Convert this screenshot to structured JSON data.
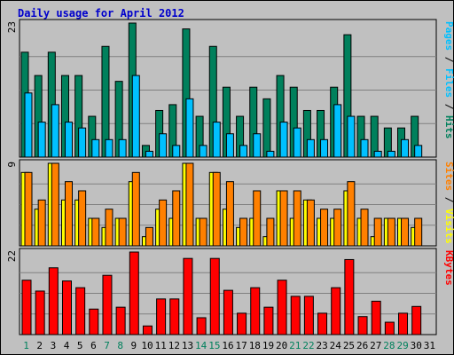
{
  "title": "Daily usage for April 2012",
  "colors": {
    "hits": "#00805c",
    "files": "#00c0ff",
    "pages": "#00c0ff",
    "visits": "#ffff00",
    "sites": "#ff8000",
    "kbytes": "#ff0000",
    "title": "#0000cc",
    "weekday": "#000000",
    "weekend": "#00805c",
    "panel_bg": "#c0c0c0"
  },
  "chart_data": [
    {
      "type": "bar",
      "panel": "top",
      "max_label": "23",
      "ylim": [
        0,
        23
      ],
      "legend": [
        "Pages",
        "Files",
        "Hits"
      ],
      "legend_sep": " / ",
      "categories": [
        "1",
        "2",
        "3",
        "4",
        "5",
        "6",
        "7",
        "8",
        "9",
        "10",
        "11",
        "12",
        "13",
        "14",
        "15",
        "16",
        "17",
        "18",
        "19",
        "20",
        "21",
        "22",
        "23",
        "24",
        "25",
        "26",
        "27",
        "28",
        "29",
        "30",
        "31"
      ],
      "series": [
        {
          "name": "Hits",
          "values": [
            18,
            14,
            18,
            14,
            14,
            7,
            19,
            13,
            23,
            2,
            8,
            9,
            22,
            7,
            19,
            12,
            7,
            12,
            10,
            14,
            12,
            8,
            8,
            12,
            21,
            7,
            7,
            5,
            5,
            7,
            0
          ]
        },
        {
          "name": "Files",
          "values": [
            11,
            6,
            9,
            6,
            5,
            3,
            3,
            3,
            14,
            1,
            4,
            2,
            10,
            2,
            6,
            4,
            2,
            4,
            1,
            6,
            5,
            3,
            3,
            9,
            7,
            3,
            1,
            1,
            3,
            2,
            0
          ]
        },
        {
          "name": "Pages",
          "values": [
            0,
            0,
            0,
            0,
            0,
            0,
            0,
            0,
            0,
            0,
            0,
            0,
            0,
            0,
            0,
            0,
            0,
            0,
            0,
            0,
            0,
            0,
            0,
            0,
            0,
            0,
            0,
            0,
            0,
            0,
            0
          ]
        }
      ]
    },
    {
      "type": "bar",
      "panel": "middle",
      "max_label": "9",
      "ylim": [
        0,
        9
      ],
      "legend": [
        "Sites",
        "Visits"
      ],
      "legend_sep": " / ",
      "categories": [
        "1",
        "2",
        "3",
        "4",
        "5",
        "6",
        "7",
        "8",
        "9",
        "10",
        "11",
        "12",
        "13",
        "14",
        "15",
        "16",
        "17",
        "18",
        "19",
        "20",
        "21",
        "22",
        "23",
        "24",
        "25",
        "26",
        "27",
        "28",
        "29",
        "30",
        "31"
      ],
      "series": [
        {
          "name": "Visits",
          "values": [
            8,
            4,
            9,
            5,
            5,
            3,
            2,
            3,
            7,
            1,
            4,
            3,
            9,
            3,
            8,
            4,
            2,
            3,
            1,
            6,
            3,
            5,
            3,
            3,
            6,
            3,
            1,
            3,
            3,
            2,
            0
          ]
        },
        {
          "name": "Sites",
          "values": [
            8,
            5,
            9,
            7,
            6,
            3,
            4,
            3,
            8,
            2,
            5,
            6,
            9,
            3,
            8,
            7,
            3,
            6,
            3,
            6,
            6,
            5,
            4,
            4,
            7,
            4,
            3,
            3,
            3,
            3,
            0
          ]
        }
      ]
    },
    {
      "type": "bar",
      "panel": "bottom",
      "max_label": "22",
      "ylim": [
        0,
        22
      ],
      "legend": [
        "KBytes"
      ],
      "legend_sep": "",
      "categories": [
        "1",
        "2",
        "3",
        "4",
        "5",
        "6",
        "7",
        "8",
        "9",
        "10",
        "11",
        "12",
        "13",
        "14",
        "15",
        "16",
        "17",
        "18",
        "19",
        "20",
        "21",
        "22",
        "23",
        "24",
        "25",
        "26",
        "27",
        "28",
        "29",
        "30",
        "31"
      ],
      "series": [
        {
          "name": "KBytes",
          "values": [
            14.5,
            11.6,
            17.8,
            14.3,
            12.5,
            6.8,
            15.8,
            7.3,
            22,
            2.3,
            9.5,
            9.5,
            20.3,
            4.5,
            20.3,
            11.8,
            5.7,
            12.5,
            7.3,
            14.5,
            10.2,
            10.2,
            5.7,
            12.5,
            20,
            4.8,
            8.9,
            3.3,
            5.7,
            7.5,
            0
          ]
        }
      ]
    }
  ],
  "days": [
    {
      "label": "1",
      "weekend": true
    },
    {
      "label": "2",
      "weekend": false
    },
    {
      "label": "3",
      "weekend": false
    },
    {
      "label": "4",
      "weekend": false
    },
    {
      "label": "5",
      "weekend": false
    },
    {
      "label": "6",
      "weekend": false
    },
    {
      "label": "7",
      "weekend": true
    },
    {
      "label": "8",
      "weekend": true
    },
    {
      "label": "9",
      "weekend": false
    },
    {
      "label": "10",
      "weekend": false
    },
    {
      "label": "11",
      "weekend": false
    },
    {
      "label": "12",
      "weekend": false
    },
    {
      "label": "13",
      "weekend": false
    },
    {
      "label": "14",
      "weekend": true
    },
    {
      "label": "15",
      "weekend": true
    },
    {
      "label": "16",
      "weekend": false
    },
    {
      "label": "17",
      "weekend": false
    },
    {
      "label": "18",
      "weekend": false
    },
    {
      "label": "19",
      "weekend": false
    },
    {
      "label": "20",
      "weekend": false
    },
    {
      "label": "21",
      "weekend": true
    },
    {
      "label": "22",
      "weekend": true
    },
    {
      "label": "23",
      "weekend": false
    },
    {
      "label": "24",
      "weekend": false
    },
    {
      "label": "25",
      "weekend": false
    },
    {
      "label": "26",
      "weekend": false
    },
    {
      "label": "27",
      "weekend": false
    },
    {
      "label": "28",
      "weekend": true
    },
    {
      "label": "29",
      "weekend": true
    },
    {
      "label": "30",
      "weekend": false
    },
    {
      "label": "31",
      "weekend": false
    }
  ]
}
